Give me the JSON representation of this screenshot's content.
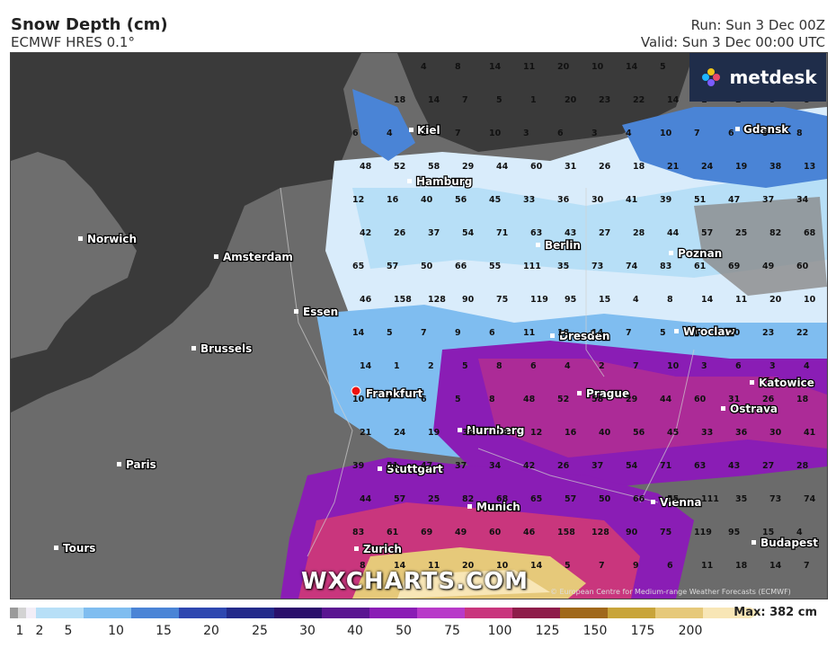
{
  "header": {
    "title": "Snow Depth (cm)",
    "subtitle": "ECMWF HRES 0.1°",
    "run": "Run: Sun 3 Dec 00Z",
    "valid": "Valid: Sun 3 Dec 00:00 UTC"
  },
  "logo": {
    "text": "metdesk",
    "icon": "pinwheel-logo-icon"
  },
  "watermark": "WXCHARTS.COM",
  "credit": "© European Centre for Medium-range Weather Forecasts (ECMWF)",
  "cities": [
    {
      "name": "Kiel"
    },
    {
      "name": "Gdansk"
    },
    {
      "name": "Hamburg"
    },
    {
      "name": "Norwich"
    },
    {
      "name": "Amsterdam"
    },
    {
      "name": "Berlin"
    },
    {
      "name": "Poznan"
    },
    {
      "name": "Essen"
    },
    {
      "name": "Brussels"
    },
    {
      "name": "Dresden"
    },
    {
      "name": "Wroclaw"
    },
    {
      "name": "Frankfurt"
    },
    {
      "name": "Prague"
    },
    {
      "name": "Katowice"
    },
    {
      "name": "Ostrava"
    },
    {
      "name": "Nurnberg"
    },
    {
      "name": "Paris"
    },
    {
      "name": "Stuttgart"
    },
    {
      "name": "Munich"
    },
    {
      "name": "Vienna"
    },
    {
      "name": "Tours"
    },
    {
      "name": "Zurich"
    },
    {
      "name": "Budapest"
    }
  ],
  "values": [
    "4",
    "8",
    "14",
    "11",
    "20",
    "10",
    "14",
    "5",
    "7",
    "9",
    "6",
    "11",
    "18",
    "14",
    "7",
    "5",
    "1",
    "20",
    "23",
    "22",
    "14",
    "1",
    "2",
    "5",
    "8",
    "6",
    "4",
    "2",
    "7",
    "10",
    "3",
    "6",
    "3",
    "4",
    "10",
    "7",
    "6",
    "5",
    "8",
    "48",
    "52",
    "58",
    "29",
    "44",
    "60",
    "31",
    "26",
    "18",
    "21",
    "24",
    "19",
    "38",
    "13",
    "12",
    "16",
    "40",
    "56",
    "45",
    "33",
    "36",
    "30",
    "41",
    "39",
    "51",
    "47",
    "37",
    "34",
    "42",
    "26",
    "37",
    "54",
    "71",
    "63",
    "43",
    "27",
    "28",
    "44",
    "57",
    "25",
    "82",
    "68",
    "65",
    "57",
    "50",
    "66",
    "55",
    "111",
    "35",
    "73",
    "74",
    "83",
    "61",
    "69",
    "49",
    "60",
    "46",
    "158",
    "128",
    "90",
    "75",
    "119",
    "95",
    "15"
  ],
  "legend": {
    "ticks": [
      "1",
      "2",
      "5",
      "10",
      "15",
      "20",
      "25",
      "30",
      "40",
      "50",
      "75",
      "100",
      "125",
      "150",
      "175",
      "200"
    ],
    "colors": [
      "#9a9a9a",
      "#d3d3d3",
      "#f2eef7",
      "#b7dff7",
      "#7fbdf0",
      "#4a84d6",
      "#2e47b0",
      "#232a8a",
      "#2a0f6b",
      "#5a1591",
      "#8a1db5",
      "#b83ac9",
      "#c9367d",
      "#8e1d4a",
      "#a0681a",
      "#c8a43a",
      "#e6c97a",
      "#f8e6b6"
    ],
    "max": "Max: 382 cm"
  }
}
